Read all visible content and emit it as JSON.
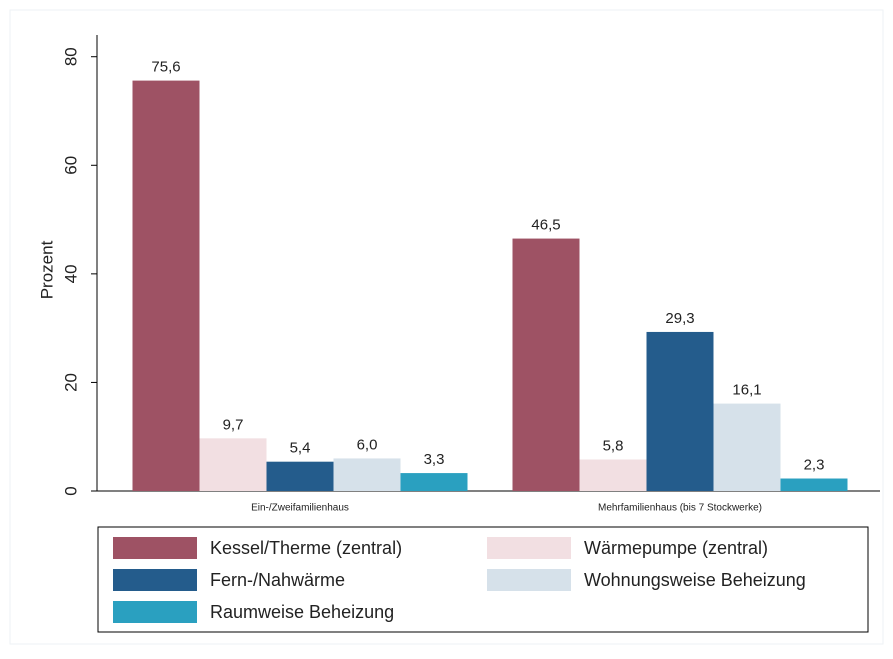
{
  "chart_data": {
    "type": "bar",
    "y_label": "Prozent",
    "categories": [
      "Ein-/Zweifamilienhaus",
      "Mehrfamilienhaus (bis 7 Stockwerke)"
    ],
    "series": [
      {
        "name": "Kessel/Therme (zentral)",
        "color": "#9e5264",
        "values": [
          75.6,
          46.5
        ],
        "value_labels": [
          "75,6",
          "46,5"
        ]
      },
      {
        "name": "Wärmepumpe (zentral)",
        "color": "#f2dfe2",
        "values": [
          9.7,
          5.8
        ],
        "value_labels": [
          "9,7",
          "5,8"
        ]
      },
      {
        "name": "Fern-/Nahwärme",
        "color": "#245c8c",
        "values": [
          5.4,
          29.3
        ],
        "value_labels": [
          "5,4",
          "29,3"
        ]
      },
      {
        "name": "Wohnungsweise Beheizung",
        "color": "#d6e1ea",
        "values": [
          6.0,
          16.1
        ],
        "value_labels": [
          "6,0",
          "16,1"
        ]
      },
      {
        "name": "Raumweise Beheizung",
        "color": "#2aa0c0",
        "values": [
          3.3,
          2.3
        ],
        "value_labels": [
          "3,3",
          "2,3"
        ]
      }
    ],
    "ylim": [
      0,
      84
    ],
    "yticks": [
      0,
      20,
      40,
      60,
      80
    ],
    "grid": false
  }
}
